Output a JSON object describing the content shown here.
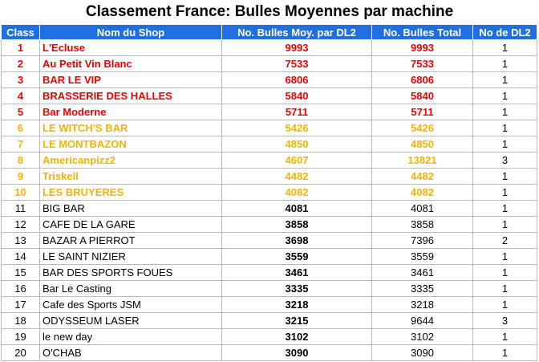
{
  "title": "Classement France: Bulles Moyennes par machine",
  "colors": {
    "header_bg": "#1f6fe0",
    "top5": "#ee0000",
    "top10": "#f2b400",
    "rest": "#000000"
  },
  "headers": [
    "Class",
    "Nom du Shop",
    "No. Bulles Moy. par DL2",
    "No. Bulles Total",
    "No de DL2"
  ],
  "rows": [
    {
      "rank": "1",
      "name": "L'Ecluse",
      "moy": "9993",
      "total": "9993",
      "dl2": "1",
      "tier": "red"
    },
    {
      "rank": "2",
      "name": "Au Petit Vin Blanc",
      "moy": "7533",
      "total": "7533",
      "dl2": "1",
      "tier": "red"
    },
    {
      "rank": "3",
      "name": "BAR LE VIP",
      "moy": "6806",
      "total": "6806",
      "dl2": "1",
      "tier": "red"
    },
    {
      "rank": "4",
      "name": "BRASSERIE DES HALLES",
      "moy": "5840",
      "total": "5840",
      "dl2": "1",
      "tier": "red"
    },
    {
      "rank": "5",
      "name": "Bar Moderne",
      "moy": "5711",
      "total": "5711",
      "dl2": "1",
      "tier": "red"
    },
    {
      "rank": "6",
      "name": "LE WITCH'S BAR",
      "moy": "5426",
      "total": "5426",
      "dl2": "1",
      "tier": "orange"
    },
    {
      "rank": "7",
      "name": "LE MONTBAZON",
      "moy": "4850",
      "total": "4850",
      "dl2": "1",
      "tier": "orange"
    },
    {
      "rank": "8",
      "name": "Americanpizz2",
      "moy": "4607",
      "total": "13821",
      "dl2": "3",
      "tier": "orange"
    },
    {
      "rank": "9",
      "name": "Triskell",
      "moy": "4482",
      "total": "4482",
      "dl2": "1",
      "tier": "orange"
    },
    {
      "rank": "10",
      "name": "LES BRUYERES",
      "moy": "4082",
      "total": "4082",
      "dl2": "1",
      "tier": "orange"
    },
    {
      "rank": "11",
      "name": "BIG BAR",
      "moy": "4081",
      "total": "4081",
      "dl2": "1",
      "tier": "black"
    },
    {
      "rank": "12",
      "name": "CAFE DE LA GARE",
      "moy": "3858",
      "total": "3858",
      "dl2": "1",
      "tier": "black"
    },
    {
      "rank": "13",
      "name": "BAZAR A PIERROT",
      "moy": "3698",
      "total": "7396",
      "dl2": "2",
      "tier": "black"
    },
    {
      "rank": "14",
      "name": "LE SAINT NIZIER",
      "moy": "3559",
      "total": "3559",
      "dl2": "1",
      "tier": "black"
    },
    {
      "rank": "15",
      "name": "BAR DES SPORTS FOUES",
      "moy": "3461",
      "total": "3461",
      "dl2": "1",
      "tier": "black"
    },
    {
      "rank": "16",
      "name": "Bar Le Casting",
      "moy": "3335",
      "total": "3335",
      "dl2": "1",
      "tier": "black"
    },
    {
      "rank": "17",
      "name": "Cafe des Sports JSM",
      "moy": "3218",
      "total": "3218",
      "dl2": "1",
      "tier": "black"
    },
    {
      "rank": "18",
      "name": "ODYSSEUM LASER",
      "moy": "3215",
      "total": "9644",
      "dl2": "3",
      "tier": "black"
    },
    {
      "rank": "19",
      "name": "le new day",
      "moy": "3102",
      "total": "3102",
      "dl2": "1",
      "tier": "black"
    },
    {
      "rank": "20",
      "name": "O'CHAB",
      "moy": "3090",
      "total": "3090",
      "dl2": "1",
      "tier": "black"
    }
  ]
}
